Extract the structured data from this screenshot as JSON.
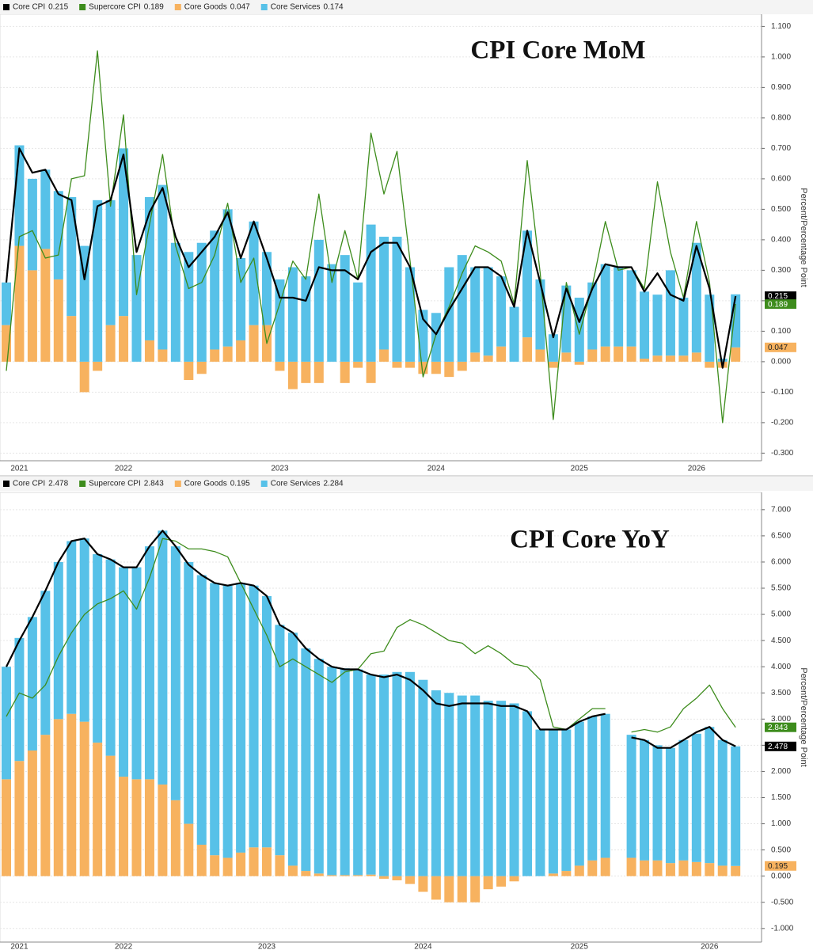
{
  "chart_data": [
    {
      "type": "bar",
      "title": "CPI Core MoM",
      "y_label": "Percent/Percentage Point",
      "stacked": true,
      "grid": true,
      "categories": [
        null,
        "2021",
        null,
        null,
        null,
        null,
        null,
        null,
        null,
        "2022",
        null,
        null,
        null,
        null,
        null,
        null,
        null,
        null,
        null,
        null,
        null,
        "2023",
        null,
        null,
        null,
        null,
        null,
        null,
        null,
        null,
        null,
        null,
        null,
        "2024",
        null,
        null,
        null,
        null,
        null,
        null,
        null,
        null,
        null,
        null,
        "2025",
        null,
        null,
        null,
        null,
        null,
        null,
        null,
        null,
        "2026",
        null,
        null,
        null
      ],
      "ylim": [
        -0.325,
        1.14
      ],
      "yticks": [
        {
          "value": -0.3,
          "label": "-0.300"
        },
        {
          "value": -0.2,
          "label": "-0.200"
        },
        {
          "value": -0.1,
          "label": "-0.100"
        },
        {
          "value": 0,
          "label": "0.000"
        },
        {
          "value": 0.1,
          "label": "0.100"
        },
        {
          "value": 0.2,
          "label": "0.200"
        },
        {
          "value": 0.3,
          "label": "0.300"
        },
        {
          "value": 0.4,
          "label": "0.400"
        },
        {
          "value": 0.5,
          "label": "0.500"
        },
        {
          "value": 0.6,
          "label": "0.600"
        },
        {
          "value": 0.7,
          "label": "0.700"
        },
        {
          "value": 0.8,
          "label": "0.800"
        },
        {
          "value": 0.9,
          "label": "0.900"
        },
        {
          "value": 1,
          "label": "1.000"
        },
        {
          "value": 1.1,
          "label": "1.100"
        }
      ],
      "series": [
        {
          "name": "Core CPI",
          "type": "line",
          "color": "#000000",
          "badge": true,
          "values": [
            0.26,
            0.7,
            0.62,
            0.63,
            0.55,
            0.53,
            0.27,
            0.51,
            0.53,
            0.68,
            0.36,
            0.49,
            0.57,
            0.41,
            0.31,
            0.36,
            0.41,
            0.49,
            0.34,
            0.46,
            0.34,
            0.21,
            0.21,
            0.2,
            0.31,
            0.3,
            0.3,
            0.27,
            0.36,
            0.39,
            0.39,
            0.31,
            0.14,
            0.09,
            0.17,
            0.24,
            0.31,
            0.31,
            0.28,
            0.18,
            0.43,
            0.26,
            0.08,
            0.24,
            0.13,
            0.24,
            0.32,
            0.31,
            0.31,
            0.23,
            0.29,
            0.22,
            0.2,
            0.38,
            0.24,
            -0.02,
            0.215
          ]
        },
        {
          "name": "Supercore CPI",
          "type": "line",
          "color": "#3d8c1c",
          "badge": true,
          "values": [
            -0.03,
            0.41,
            0.43,
            0.34,
            0.35,
            0.6,
            0.61,
            1.02,
            0.51,
            0.81,
            0.22,
            0.45,
            0.68,
            0.38,
            0.24,
            0.26,
            0.35,
            0.52,
            0.26,
            0.34,
            0.06,
            0.19,
            0.33,
            0.27,
            0.55,
            0.26,
            0.43,
            0.27,
            0.75,
            0.55,
            0.69,
            0.33,
            -0.05,
            0.09,
            0.18,
            0.29,
            0.38,
            0.36,
            0.33,
            0.19,
            0.66,
            0.29,
            -0.19,
            0.26,
            0.09,
            0.25,
            0.46,
            0.3,
            0.31,
            0.24,
            0.59,
            0.36,
            0.21,
            0.46,
            0.26,
            -0.2,
            0.189
          ]
        },
        {
          "name": "Core Goods",
          "type": "bar",
          "color": "#f7b25f",
          "badge": true,
          "values": [
            0.12,
            0.38,
            0.3,
            0.37,
            0.27,
            0.15,
            -0.1,
            -0.03,
            0.12,
            0.15,
            0,
            0.07,
            0.04,
            0,
            -0.06,
            -0.04,
            0.04,
            0.05,
            0.07,
            0.12,
            0.12,
            -0.03,
            -0.09,
            -0.07,
            -0.07,
            0,
            -0.07,
            -0.02,
            -0.07,
            0.04,
            -0.02,
            -0.02,
            -0.04,
            -0.04,
            -0.05,
            -0.03,
            0.03,
            0.02,
            0.05,
            0,
            0.08,
            0.04,
            -0.02,
            0.03,
            -0.01,
            0.04,
            0.05,
            0.05,
            0.05,
            0.01,
            0.02,
            0.02,
            0.02,
            0.03,
            -0.02,
            -0.02,
            0.047
          ]
        },
        {
          "name": "Core Services",
          "type": "bar",
          "color": "#57c1e8",
          "badge": false,
          "values": [
            0.14,
            0.33,
            0.3,
            0.26,
            0.29,
            0.39,
            0.38,
            0.53,
            0.41,
            0.55,
            0.35,
            0.47,
            0.54,
            0.39,
            0.36,
            0.39,
            0.39,
            0.45,
            0.27,
            0.34,
            0.24,
            0.27,
            0.31,
            0.28,
            0.4,
            0.32,
            0.35,
            0.26,
            0.45,
            0.37,
            0.41,
            0.31,
            0.17,
            0.16,
            0.31,
            0.35,
            0.28,
            0.29,
            0.23,
            0.18,
            0.35,
            0.23,
            0.09,
            0.22,
            0.21,
            0.22,
            0.27,
            0.26,
            0.25,
            0.22,
            0.2,
            0.28,
            0.19,
            0.36,
            0.22,
            0.01,
            0.174
          ]
        }
      ]
    },
    {
      "type": "bar",
      "title": "CPI Core YoY",
      "y_label": "Percent/Percentage Point",
      "stacked": true,
      "grid": true,
      "categories": [
        null,
        "2021",
        null,
        null,
        null,
        null,
        null,
        null,
        null,
        "2022",
        null,
        null,
        null,
        null,
        null,
        null,
        null,
        null,
        null,
        null,
        "2023",
        null,
        null,
        null,
        null,
        null,
        null,
        null,
        null,
        null,
        null,
        null,
        "2024",
        null,
        null,
        null,
        null,
        null,
        null,
        null,
        null,
        null,
        null,
        null,
        "2025",
        null,
        null,
        null,
        null,
        null,
        null,
        null,
        null,
        null,
        "2026",
        null,
        null
      ],
      "ylim": [
        -1.26,
        7.33
      ],
      "yticks": [
        {
          "value": -1,
          "label": "-1.000"
        },
        {
          "value": -0.5,
          "label": "-0.500"
        },
        {
          "value": 0,
          "label": "0.000"
        },
        {
          "value": 0.5,
          "label": "0.500"
        },
        {
          "value": 1,
          "label": "1.000"
        },
        {
          "value": 1.5,
          "label": "1.500"
        },
        {
          "value": 2,
          "label": "2.000"
        },
        {
          "value": 2.5,
          "label": "2.500"
        },
        {
          "value": 3,
          "label": "3.000"
        },
        {
          "value": 3.5,
          "label": "3.500"
        },
        {
          "value": 4,
          "label": "4.000"
        },
        {
          "value": 4.5,
          "label": "4.500"
        },
        {
          "value": 5,
          "label": "5.000"
        },
        {
          "value": 5.5,
          "label": "5.500"
        },
        {
          "value": 6,
          "label": "6.000"
        },
        {
          "value": 6.5,
          "label": "6.500"
        },
        {
          "value": 7,
          "label": "7.000"
        }
      ],
      "series": [
        {
          "name": "Core CPI",
          "type": "line",
          "color": "#000000",
          "badge": true,
          "values": [
            4.0,
            4.5,
            4.95,
            5.45,
            6.0,
            6.4,
            6.45,
            6.15,
            6.05,
            5.9,
            5.9,
            6.3,
            6.6,
            6.3,
            5.95,
            5.75,
            5.6,
            5.55,
            5.6,
            5.55,
            5.35,
            4.8,
            4.65,
            4.35,
            4.15,
            4.0,
            3.95,
            3.95,
            3.85,
            3.8,
            3.85,
            3.75,
            3.55,
            3.3,
            3.25,
            3.3,
            3.3,
            3.3,
            3.25,
            3.25,
            3.15,
            2.8,
            2.8,
            2.8,
            2.95,
            3.05,
            3.1,
            null,
            2.65,
            2.6,
            2.45,
            2.45,
            2.6,
            2.75,
            2.85,
            2.6,
            2.478
          ]
        },
        {
          "name": "Supercore CPI",
          "type": "line",
          "color": "#3d8c1c",
          "badge": true,
          "values": [
            3.05,
            3.5,
            3.4,
            3.65,
            4.2,
            4.65,
            5.0,
            5.2,
            5.3,
            5.45,
            5.1,
            5.7,
            6.45,
            6.4,
            6.25,
            6.25,
            6.2,
            6.1,
            5.6,
            5.1,
            4.6,
            4.0,
            4.15,
            4.0,
            3.85,
            3.7,
            3.9,
            3.95,
            4.25,
            4.3,
            4.75,
            4.9,
            4.8,
            4.65,
            4.5,
            4.45,
            4.25,
            4.4,
            4.25,
            4.05,
            4.0,
            3.75,
            2.85,
            2.8,
            3.0,
            3.2,
            3.2,
            null,
            2.75,
            2.8,
            2.75,
            2.85,
            3.2,
            3.4,
            3.65,
            3.2,
            2.843
          ]
        },
        {
          "name": "Core Goods",
          "type": "bar",
          "color": "#f7b25f",
          "badge": true,
          "values": [
            1.85,
            2.2,
            2.4,
            2.7,
            3.0,
            3.1,
            2.95,
            2.55,
            2.3,
            1.9,
            1.85,
            1.85,
            1.75,
            1.45,
            1.0,
            0.6,
            0.4,
            0.35,
            0.45,
            0.55,
            0.55,
            0.4,
            0.2,
            0.1,
            0.05,
            0.02,
            0.02,
            0.02,
            0.03,
            -0.05,
            -0.08,
            -0.15,
            -0.3,
            -0.45,
            -0.5,
            -0.5,
            -0.5,
            -0.25,
            -0.2,
            -0.1,
            0,
            0,
            0.05,
            0.1,
            0.2,
            0.3,
            0.35,
            null,
            0.35,
            0.3,
            0.3,
            0.25,
            0.3,
            0.27,
            0.25,
            0.2,
            0.195
          ]
        },
        {
          "name": "Core Services",
          "type": "bar",
          "color": "#57c1e8",
          "badge": false,
          "values": [
            2.15,
            2.35,
            2.55,
            2.75,
            3.0,
            3.3,
            3.5,
            3.6,
            3.75,
            4.0,
            4.05,
            4.45,
            4.85,
            4.85,
            5.0,
            5.15,
            5.2,
            5.2,
            5.15,
            5.0,
            4.8,
            4.4,
            4.45,
            4.25,
            4.1,
            3.98,
            3.95,
            3.93,
            3.82,
            3.85,
            3.9,
            3.9,
            3.75,
            3.55,
            3.5,
            3.45,
            3.45,
            3.35,
            3.35,
            3.3,
            3.15,
            2.8,
            2.75,
            2.7,
            2.75,
            2.75,
            2.75,
            null,
            2.35,
            2.3,
            2.2,
            2.2,
            2.3,
            2.45,
            2.6,
            2.4,
            2.284
          ]
        }
      ]
    }
  ]
}
